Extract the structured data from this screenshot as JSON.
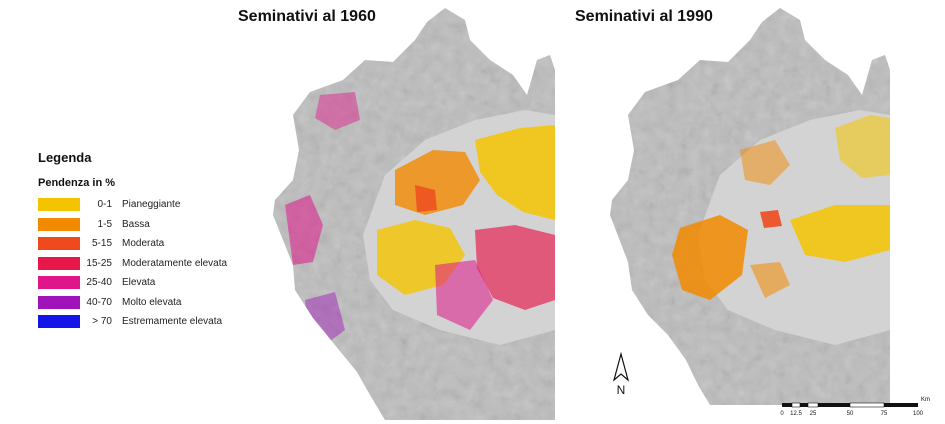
{
  "titles": {
    "map_1960": "Seminativi al 1960",
    "map_1990": "Seminativi al 1990"
  },
  "legend": {
    "heading": "Legenda",
    "subtitle": "Pendenza in %",
    "items": [
      {
        "range": "0-1",
        "label": "Pianeggiante",
        "color": "#f5c400"
      },
      {
        "range": "1-5",
        "label": "Bassa",
        "color": "#f28a00"
      },
      {
        "range": "5-15",
        "label": "Moderata",
        "color": "#ee4a1e"
      },
      {
        "range": "15-25",
        "label": "Moderatamente elevata",
        "color": "#e8174a"
      },
      {
        "range": "25-40",
        "label": "Elevata",
        "color": "#e0158a"
      },
      {
        "range": "40-70",
        "label": "Molto elevata",
        "color": "#a013b8"
      },
      {
        "range": "> 70",
        "label": "Estremamente elevata",
        "color": "#1414e8"
      }
    ]
  },
  "north_arrow": {
    "label": "N"
  },
  "scale_bar": {
    "unit": "Km",
    "ticks": [
      "0",
      "12.5",
      "25",
      "50",
      "75",
      "100"
    ]
  },
  "colors": {
    "relief": "#bdbdbd",
    "relief_dark": "#8f8f8f",
    "plain": "#d3d3d3"
  }
}
